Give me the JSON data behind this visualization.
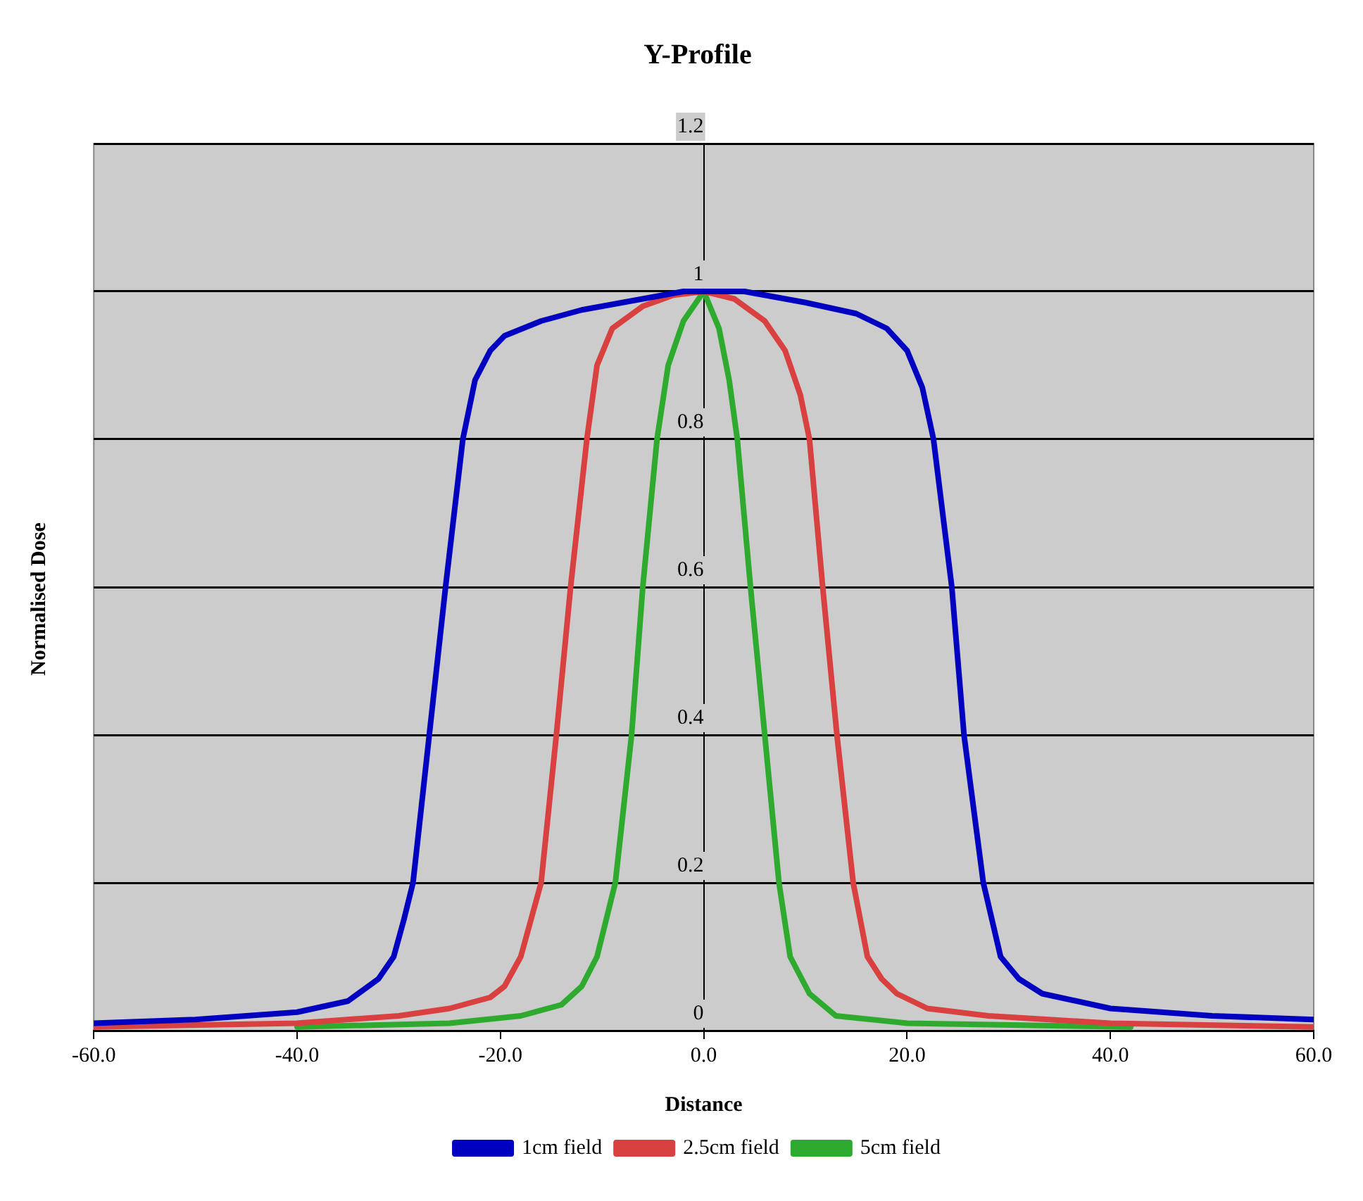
{
  "chart_data": {
    "type": "line",
    "title": "Y-Profile",
    "xlabel": "Distance",
    "ylabel": "Normalised Dose",
    "xlim": [
      -60,
      60
    ],
    "xticks": [
      {
        "value": -60,
        "label": "-60.0"
      },
      {
        "value": -40,
        "label": "-40.0"
      },
      {
        "value": -20,
        "label": "-20.0"
      },
      {
        "value": 0,
        "label": "0.0"
      },
      {
        "value": 20,
        "label": "20.0"
      },
      {
        "value": 40,
        "label": "40.0"
      },
      {
        "value": 60,
        "label": "60.0"
      }
    ],
    "ylim": [
      0,
      1.2
    ],
    "yticks": [
      0,
      0.2,
      0.4,
      0.6,
      0.8,
      1,
      1.2
    ],
    "grid": "y",
    "legend": "bottom",
    "marker": "none",
    "line_style": "solid",
    "series": [
      {
        "name": "1cm field",
        "color": "#0000c0",
        "x": [
          -60,
          -50,
          -40,
          -35,
          -32,
          -30.5,
          -29.5,
          -28.6,
          -27,
          -25.4,
          -23.7,
          -22.5,
          -21,
          -19.6,
          -16,
          -12,
          -6,
          -2,
          0,
          4,
          10,
          15,
          18,
          20,
          21.5,
          22.6,
          24.4,
          25.6,
          27.5,
          29.2,
          31,
          33.3,
          40,
          50,
          60
        ],
        "values": [
          0.01,
          0.015,
          0.025,
          0.04,
          0.07,
          0.1,
          0.15,
          0.2,
          0.4,
          0.6,
          0.8,
          0.88,
          0.92,
          0.94,
          0.96,
          0.975,
          0.99,
          1.0,
          1.0,
          1.0,
          0.985,
          0.97,
          0.95,
          0.92,
          0.87,
          0.8,
          0.6,
          0.4,
          0.2,
          0.1,
          0.07,
          0.05,
          0.03,
          0.02,
          0.015
        ]
      },
      {
        "name": "2.5cm field",
        "color": "#d94040",
        "x": [
          -60,
          -40,
          -30,
          -25,
          -21,
          -19.6,
          -18,
          -16,
          -14.5,
          -13.1,
          -11.5,
          -10.5,
          -9,
          -6,
          -3,
          0,
          3,
          6,
          8,
          9.5,
          10.4,
          11.7,
          13.1,
          14.7,
          16.1,
          17.5,
          19,
          22,
          28,
          40,
          60
        ],
        "values": [
          0.005,
          0.01,
          0.02,
          0.03,
          0.045,
          0.06,
          0.1,
          0.2,
          0.4,
          0.6,
          0.8,
          0.9,
          0.95,
          0.98,
          0.995,
          1.0,
          0.99,
          0.96,
          0.92,
          0.86,
          0.8,
          0.6,
          0.4,
          0.2,
          0.1,
          0.07,
          0.05,
          0.03,
          0.02,
          0.01,
          0.005
        ]
      },
      {
        "name": "5cm field",
        "color": "#2eaa2e",
        "x": [
          -40,
          -25,
          -18,
          -14,
          -12,
          -10.5,
          -8.7,
          -7.1,
          -6,
          -4.6,
          -3.5,
          -2,
          0,
          1.5,
          2.5,
          3.3,
          4.6,
          6,
          7.4,
          8.5,
          10.4,
          13,
          20,
          42
        ],
        "values": [
          0.005,
          0.01,
          0.02,
          0.035,
          0.06,
          0.1,
          0.2,
          0.4,
          0.6,
          0.8,
          0.9,
          0.96,
          1.0,
          0.95,
          0.88,
          0.8,
          0.6,
          0.4,
          0.2,
          0.1,
          0.05,
          0.02,
          0.01,
          0.005
        ]
      }
    ]
  }
}
